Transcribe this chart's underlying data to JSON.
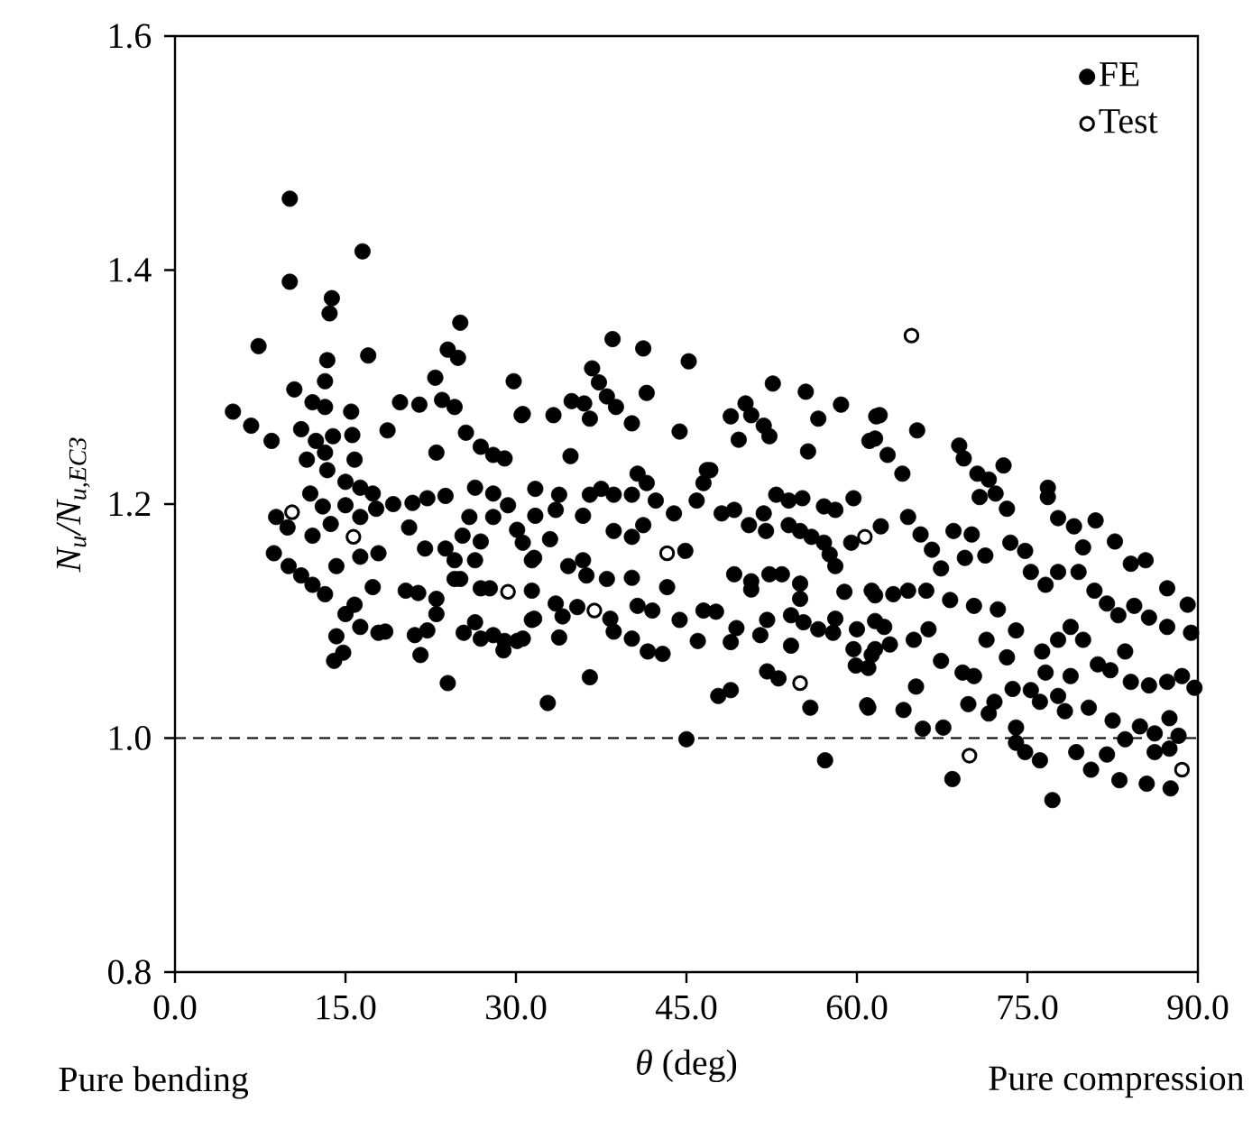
{
  "chart_data": {
    "type": "scatter",
    "xlabel": "*θ* (deg)",
    "ylabel": "N$_{u}$/N$_{u,EC3}$",
    "annotations": [
      "Pure bending",
      "Pure compression"
    ],
    "xlim": [
      0,
      90
    ],
    "xticks": [
      {
        "value": 0,
        "label": "0.0"
      },
      {
        "value": 15,
        "label": "15.0"
      },
      {
        "value": 30,
        "label": "30.0"
      },
      {
        "value": 45,
        "label": "45.0"
      },
      {
        "value": 60,
        "label": "60.0"
      },
      {
        "value": 75,
        "label": "75.0"
      },
      {
        "value": 90,
        "label": "90.0"
      }
    ],
    "ylim": [
      0.8,
      1.6
    ],
    "yticks": [
      {
        "value": 0.8,
        "label": "0.8"
      },
      {
        "value": 1.0,
        "label": "1.0"
      },
      {
        "value": 1.2,
        "label": "1.2"
      },
      {
        "value": 1.4,
        "label": "1.4"
      },
      {
        "value": 1.6,
        "label": "1.6"
      }
    ],
    "ref_lines": [
      {
        "axis": "y",
        "value": 1.0,
        "line_style": "dashed",
        "color": "#000000"
      }
    ],
    "legend": "top right",
    "series": [
      {
        "name": "FE",
        "color": "#000000",
        "x": [
          10.1,
          16.5,
          10.1,
          13.8,
          13.6,
          7.35,
          17.0,
          13.4,
          13.2,
          10.5,
          12.1,
          13.2,
          5.1,
          6.7,
          8.5,
          15.5,
          15.6,
          11.1,
          12.4,
          13.9,
          13.2,
          11.6,
          15.8,
          13.4,
          15.0,
          16.3,
          17.4,
          11.9,
          13.0,
          8.9,
          9.9,
          12.1,
          13.7,
          15.0,
          16.3,
          17.7,
          8.7,
          10.0,
          11.1,
          12.1,
          13.2,
          14.2,
          16.3,
          17.9,
          15.0,
          15.8,
          14.2,
          14.0,
          14.8,
          16.3,
          17.4,
          17.9,
          18.5,
          19.2,
          19.8,
          21.5,
          22.9,
          24.0,
          25.1,
          24.9,
          23.5,
          24.6,
          18.7,
          20.9,
          22.2,
          23.8,
          20.6,
          22.0,
          23.0,
          25.6,
          26.9,
          28.0,
          29.0,
          26.4,
          28.0,
          29.8,
          30.5,
          25.9,
          28.0,
          29.3,
          30.1,
          25.3,
          26.9,
          23.8,
          24.6,
          26.4,
          20.3,
          21.4,
          23.0,
          23.0,
          24.6,
          25.1,
          26.9,
          27.7,
          26.4,
          25.4,
          26.9,
          28.0,
          29.0,
          30.1,
          28.9,
          21.1,
          22.2,
          21.6,
          24.0,
          31.6,
          31.6,
          38.5,
          41.2,
          45.2,
          36.7,
          37.3,
          38.0,
          38.8,
          41.5,
          34.9,
          36.0,
          36.5,
          30.6,
          33.3,
          40.2,
          44.4,
          34.8,
          48.9,
          50.2,
          50.7,
          51.8,
          52.3,
          49.6,
          52.6,
          55.5,
          56.6,
          58.6,
          55.7,
          62.0,
          61.1,
          46.8,
          40.7,
          40.2,
          41.5,
          42.3,
          43.9,
          38.6,
          31.7,
          33.8,
          36.5,
          37.5,
          31.7,
          33.5,
          35.9,
          38.6,
          40.2,
          41.2,
          44.9,
          45.9,
          46.5,
          47.1,
          48.1,
          49.2,
          50.5,
          51.8,
          52.9,
          54.0,
          55.2,
          57.1,
          58.1,
          59.7,
          52.0,
          54.0,
          55.0,
          56.0,
          57.1,
          57.6,
          58.1,
          59.5,
          30.6,
          33.0,
          31.4,
          34.6,
          35.9,
          36.2,
          38.0,
          40.2,
          43.3,
          31.4,
          33.5,
          35.4,
          34.1,
          38.3,
          40.7,
          42.0,
          44.4,
          46.5,
          47.6,
          49.2,
          50.7,
          52.3,
          53.4,
          50.7,
          55.0,
          55.0,
          54.2,
          55.3,
          56.6,
          58.1,
          58.9,
          61.6,
          57.9,
          60.0,
          31.4,
          30.6,
          33.8,
          38.6,
          40.2,
          46.0,
          48.9,
          49.4,
          51.5,
          52.1,
          41.6,
          42.9,
          36.5,
          48.9,
          47.8,
          52.1,
          53.1,
          54.2,
          55.9,
          59.7,
          61.0,
          59.9,
          60.9,
          32.8,
          45.0,
          57.2,
          61.6,
          61.7,
          65.3,
          69.0,
          69.4,
          70.6,
          71.6,
          72.9,
          72.2,
          73.2,
          70.8,
          61.6,
          62.7,
          64.0,
          76.8,
          76.8,
          77.7,
          79.1,
          79.9,
          81.0,
          82.7,
          84.1,
          85.4,
          87.3,
          89.1,
          62.1,
          64.5,
          65.6,
          66.6,
          67.4,
          68.5,
          70.1,
          69.5,
          71.3,
          73.5,
          74.8,
          75.3,
          76.6,
          77.7,
          79.5,
          80.9,
          82.0,
          83.0,
          84.4,
          85.7,
          87.3,
          89.4,
          61.3,
          63.2,
          64.5,
          66.1,
          68.2,
          70.3,
          72.4,
          74.0,
          61.6,
          62.4,
          62.9,
          65.0,
          66.3,
          61.3,
          67.4,
          69.3,
          70.3,
          71.4,
          73.2,
          76.3,
          77.7,
          78.8,
          79.9,
          76.6,
          78.8,
          81.2,
          82.3,
          83.6,
          84.1,
          85.7,
          87.3,
          88.6,
          89.7,
          61.0,
          64.1,
          65.2,
          65.8,
          67.6,
          69.8,
          71.6,
          73.7,
          75.3,
          74.0,
          72.1,
          76.1,
          77.7,
          78.3,
          80.4,
          74.0,
          74.8,
          76.1,
          79.3,
          80.6,
          82.0,
          82.5,
          83.6,
          84.9,
          86.2,
          88.3,
          87.5,
          86.2,
          87.5,
          83.1,
          85.5,
          87.6,
          68.4,
          77.2
        ],
        "values": [
          1.461,
          1.416,
          1.39,
          1.376,
          1.363,
          1.335,
          1.327,
          1.323,
          1.305,
          1.298,
          1.287,
          1.283,
          1.279,
          1.267,
          1.254,
          1.279,
          1.259,
          1.264,
          1.254,
          1.258,
          1.244,
          1.238,
          1.238,
          1.229,
          1.219,
          1.214,
          1.209,
          1.209,
          1.198,
          1.189,
          1.18,
          1.173,
          1.183,
          1.199,
          1.189,
          1.196,
          1.158,
          1.147,
          1.139,
          1.131,
          1.123,
          1.147,
          1.155,
          1.158,
          1.106,
          1.114,
          1.087,
          1.066,
          1.073,
          1.095,
          1.129,
          1.09,
          1.091,
          1.2,
          1.287,
          1.285,
          1.308,
          1.332,
          1.355,
          1.325,
          1.289,
          1.283,
          1.263,
          1.201,
          1.205,
          1.207,
          1.18,
          1.162,
          1.244,
          1.261,
          1.249,
          1.242,
          1.239,
          1.214,
          1.209,
          1.305,
          1.276,
          1.189,
          1.189,
          1.199,
          1.178,
          1.173,
          1.168,
          1.162,
          1.152,
          1.152,
          1.126,
          1.124,
          1.119,
          1.106,
          1.136,
          1.136,
          1.128,
          1.128,
          1.099,
          1.09,
          1.085,
          1.088,
          1.083,
          1.083,
          1.075,
          1.088,
          1.092,
          1.071,
          1.047,
          1.154,
          1.102,
          1.341,
          1.333,
          1.322,
          1.316,
          1.304,
          1.292,
          1.283,
          1.295,
          1.288,
          1.286,
          1.273,
          1.277,
          1.276,
          1.269,
          1.262,
          1.241,
          1.275,
          1.286,
          1.276,
          1.267,
          1.258,
          1.255,
          1.303,
          1.296,
          1.273,
          1.285,
          1.245,
          1.276,
          1.254,
          1.229,
          1.226,
          1.208,
          1.218,
          1.203,
          1.192,
          1.208,
          1.213,
          1.208,
          1.208,
          1.213,
          1.19,
          1.195,
          1.19,
          1.177,
          1.172,
          1.182,
          1.16,
          1.203,
          1.218,
          1.229,
          1.192,
          1.195,
          1.182,
          1.192,
          1.208,
          1.203,
          1.205,
          1.198,
          1.195,
          1.205,
          1.177,
          1.182,
          1.177,
          1.172,
          1.167,
          1.157,
          1.147,
          1.167,
          1.167,
          1.17,
          1.152,
          1.147,
          1.152,
          1.139,
          1.136,
          1.137,
          1.129,
          1.126,
          1.115,
          1.112,
          1.104,
          1.102,
          1.113,
          1.109,
          1.101,
          1.109,
          1.108,
          1.14,
          1.134,
          1.14,
          1.14,
          1.127,
          1.132,
          1.119,
          1.105,
          1.099,
          1.093,
          1.102,
          1.125,
          1.122,
          1.09,
          1.093,
          1.101,
          1.085,
          1.086,
          1.091,
          1.085,
          1.083,
          1.082,
          1.094,
          1.088,
          1.101,
          1.074,
          1.072,
          1.052,
          1.041,
          1.036,
          1.057,
          1.051,
          1.079,
          1.026,
          1.076,
          1.06,
          1.062,
          1.028,
          1.03,
          0.999,
          0.981,
          1.076,
          1.275,
          1.263,
          1.25,
          1.239,
          1.226,
          1.221,
          1.233,
          1.209,
          1.196,
          1.206,
          1.256,
          1.242,
          1.226,
          1.214,
          1.206,
          1.188,
          1.181,
          1.163,
          1.186,
          1.168,
          1.149,
          1.152,
          1.128,
          1.114,
          1.181,
          1.189,
          1.174,
          1.161,
          1.145,
          1.177,
          1.174,
          1.154,
          1.156,
          1.167,
          1.16,
          1.142,
          1.131,
          1.142,
          1.142,
          1.126,
          1.115,
          1.105,
          1.113,
          1.103,
          1.095,
          1.09,
          1.126,
          1.123,
          1.126,
          1.126,
          1.118,
          1.113,
          1.11,
          1.092,
          1.1,
          1.095,
          1.08,
          1.084,
          1.093,
          1.071,
          1.066,
          1.056,
          1.053,
          1.084,
          1.069,
          1.074,
          1.084,
          1.095,
          1.084,
          1.056,
          1.053,
          1.063,
          1.058,
          1.074,
          1.048,
          1.045,
          1.048,
          1.053,
          1.043,
          1.026,
          1.024,
          1.044,
          1.008,
          1.009,
          1.029,
          1.021,
          1.042,
          1.041,
          1.009,
          1.031,
          1.031,
          1.036,
          1.023,
          1.026,
          0.996,
          0.988,
          0.981,
          0.988,
          0.973,
          0.986,
          1.015,
          0.999,
          1.01,
          1.004,
          1.002,
          1.017,
          0.988,
          0.991,
          0.964,
          0.961,
          0.957,
          0.965,
          0.947
        ]
      },
      {
        "name": "Test",
        "color": "#000000",
        "x": [
          10.3,
          15.7,
          29.3,
          43.3,
          60.7,
          36.9,
          55.0,
          64.8,
          69.9,
          88.6
        ],
        "values": [
          1.193,
          1.172,
          1.125,
          1.158,
          1.172,
          1.109,
          1.047,
          1.344,
          0.985,
          0.973
        ]
      }
    ]
  }
}
